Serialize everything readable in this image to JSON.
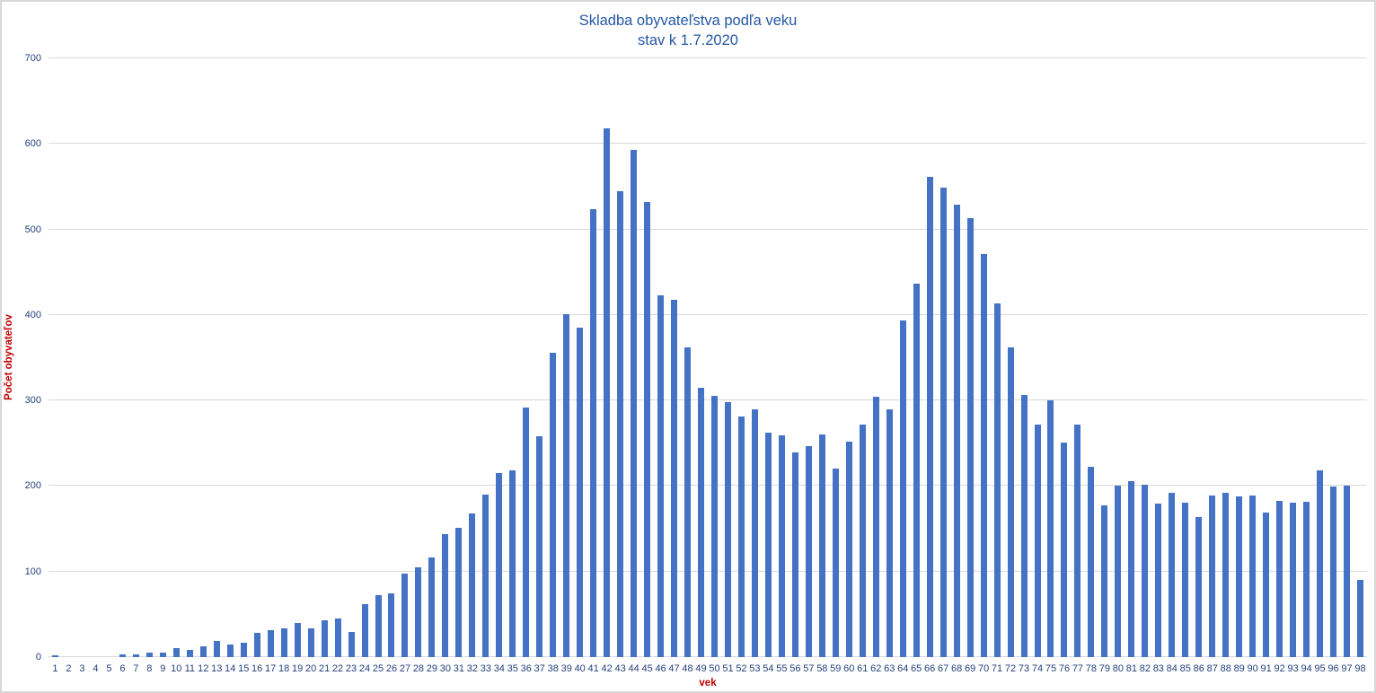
{
  "frame": {
    "background": "#ffffff",
    "border_color": "#d8d8d8"
  },
  "chart_data": {
    "type": "bar",
    "title": "Skladba obyvateľstva podľa veku",
    "subtitle": "stav k 1.7.2020",
    "xlabel": "vek",
    "ylabel": "Počet obyvateľov",
    "ylim": [
      0,
      700
    ],
    "y_ticks": [
      0,
      100,
      200,
      300,
      400,
      500,
      600,
      700
    ],
    "grid": true,
    "legend": false,
    "bar_color": "#4472c4",
    "gridline_color": "#d9d9d9",
    "title_color": "#2457a5",
    "tick_color": "#24417c",
    "axis_label_color": "#c00000",
    "categories": [
      "1",
      "2",
      "3",
      "4",
      "5",
      "6",
      "7",
      "8",
      "9",
      "10",
      "11",
      "12",
      "13",
      "14",
      "15",
      "16",
      "17",
      "18",
      "19",
      "20",
      "21",
      "22",
      "23",
      "24",
      "25",
      "26",
      "27",
      "28",
      "29",
      "30",
      "31",
      "32",
      "33",
      "34",
      "35",
      "36",
      "37",
      "38",
      "39",
      "40",
      "41",
      "42",
      "43",
      "44",
      "45",
      "46",
      "47",
      "48",
      "49",
      "50",
      "51",
      "52",
      "53",
      "54",
      "55",
      "56",
      "57",
      "58",
      "59",
      "60",
      "61",
      "62",
      "63",
      "64",
      "65",
      "66",
      "67",
      "68",
      "69",
      "70",
      "71",
      "72",
      "73",
      "74",
      "75",
      "76",
      "77",
      "78",
      "79",
      "80",
      "81",
      "82",
      "83",
      "84",
      "85",
      "86",
      "87",
      "88",
      "89",
      "90",
      "91",
      "92",
      "93",
      "94",
      "95",
      "96",
      "97",
      "98"
    ],
    "values": [
      2,
      0,
      0,
      0,
      0,
      3,
      3,
      5,
      5,
      11,
      8,
      13,
      19,
      15,
      17,
      28,
      32,
      34,
      40,
      34,
      43,
      45,
      29,
      62,
      72,
      75,
      98,
      105,
      117,
      144,
      151,
      168,
      190,
      215,
      218,
      292,
      258,
      356,
      401,
      385,
      524,
      618,
      545,
      593,
      532,
      423,
      418,
      362,
      315,
      305,
      298,
      281,
      290,
      262,
      259,
      239,
      247,
      260,
      220,
      252,
      272,
      304,
      290,
      394,
      437,
      561,
      549,
      529,
      513,
      471,
      413,
      362,
      306,
      272,
      300,
      251,
      272,
      222,
      177,
      200,
      206,
      202,
      179,
      192,
      181,
      164,
      189,
      192,
      188,
      189,
      169,
      183,
      181,
      182,
      218,
      199,
      200,
      90
    ]
  }
}
